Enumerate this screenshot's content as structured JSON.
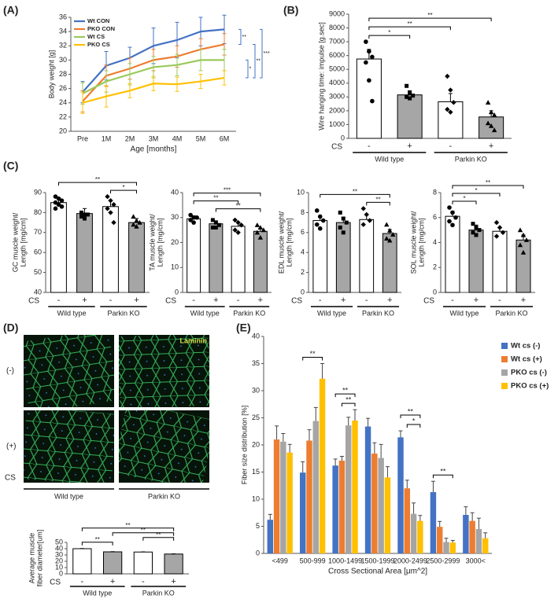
{
  "chart_data": [
    {
      "type": "line",
      "panel": "(A)",
      "ylabel": "Body weight [g]",
      "xlabel": "Age [months]",
      "categories": [
        "Pre",
        "1M",
        "2M",
        "3M",
        "4M",
        "5M",
        "6M"
      ],
      "ylim": [
        20,
        36
      ],
      "yticks": [
        20,
        22,
        24,
        26,
        28,
        30,
        32,
        34,
        36
      ],
      "legend": "upper left",
      "series": [
        {
          "name": "Wt CON",
          "color": "#4472c4",
          "values": [
            25.5,
            29.2,
            30.3,
            32.0,
            32.8,
            34.0,
            34.3
          ],
          "errors": [
            1.5,
            2.0,
            1.5,
            2.5,
            2.5,
            2.0,
            2.0
          ]
        },
        {
          "name": "PKO CON",
          "color": "#ed7d31",
          "values": [
            24.2,
            27.8,
            28.8,
            30.0,
            30.5,
            31.5,
            32.2
          ],
          "errors": [
            1.5,
            1.5,
            1.5,
            1.5,
            1.5,
            1.5,
            1.5
          ]
        },
        {
          "name": "Wt CS",
          "color": "#9bc95a",
          "values": [
            25.3,
            27.0,
            28.0,
            29.0,
            29.3,
            30.0,
            30.0
          ],
          "errors": [
            1.5,
            1.5,
            1.5,
            1.5,
            1.5,
            1.5,
            1.5
          ]
        },
        {
          "name": "PKO CS",
          "color": "#ffc000",
          "values": [
            24.0,
            24.9,
            25.7,
            26.7,
            26.6,
            27.0,
            27.5
          ],
          "errors": [
            1.5,
            1.5,
            1.0,
            1.0,
            1.0,
            1.0,
            1.0
          ]
        }
      ],
      "annotations": [
        {
          "text": "**",
          "pair": [
            0,
            1
          ]
        },
        {
          "text": "*",
          "pair": [
            2,
            3
          ]
        },
        {
          "text": "**",
          "pair": [
            1,
            3
          ]
        },
        {
          "text": "***",
          "pair": [
            0,
            3
          ]
        }
      ]
    },
    {
      "type": "bar",
      "panel": "(B)",
      "ylabel": [
        "Wire hanging time: impulse [g.sec]"
      ],
      "categories": [
        "-",
        "+",
        "-",
        "+"
      ],
      "group_label": "CS",
      "groups": [
        "Wild type",
        "Parkin KO"
      ],
      "values": [
        5750,
        3150,
        2650,
        1550
      ],
      "errors": [
        700,
        300,
        600,
        450
      ],
      "colors": [
        "#ffffff",
        "#a6a6a6",
        "#ffffff",
        "#a6a6a6"
      ],
      "markers": [
        "circle",
        "square",
        "diamond",
        "triangle"
      ],
      "points": [
        [
          7000,
          6300,
          5900,
          5500,
          4200,
          2700
        ],
        [
          3800,
          3300,
          3100,
          3000,
          2900
        ],
        [
          4500,
          3500,
          2600,
          2100,
          1900
        ],
        [
          2600,
          1900,
          1700,
          1100,
          900,
          600
        ]
      ],
      "ylim": [
        0,
        9000
      ],
      "yticks": [
        0,
        1000,
        2000,
        3000,
        4000,
        5000,
        6000,
        7000,
        8000,
        9000
      ],
      "annotations": [
        {
          "text": "*",
          "pair": [
            0,
            1
          ]
        },
        {
          "text": "**",
          "pair": [
            0,
            2
          ]
        },
        {
          "text": "**",
          "pair": [
            0,
            3
          ]
        }
      ]
    },
    {
      "type": "bar",
      "panel": "(C)",
      "ylabel": [
        "GC muscle weight/",
        "Length [mg/cm]"
      ],
      "categories": [
        "-",
        "+",
        "-",
        "+"
      ],
      "group_label": "CS",
      "groups": [
        "Wild type",
        "Parkin KO"
      ],
      "values": [
        85,
        79.5,
        83,
        75
      ],
      "errors": [
        2,
        2.5,
        3,
        2
      ],
      "colors": [
        "#ffffff",
        "#a6a6a6",
        "#ffffff",
        "#a6a6a6"
      ],
      "markers": [
        "circle",
        "square",
        "diamond",
        "triangle"
      ],
      "points": [
        [
          88,
          87,
          86,
          85,
          84,
          83,
          82
        ],
        [
          80,
          79,
          79,
          78,
          77
        ],
        [
          88,
          86,
          84,
          82,
          80,
          75
        ],
        [
          78,
          76,
          75,
          74,
          73
        ]
      ],
      "ylim": [
        40,
        90
      ],
      "yticks": [
        40,
        50,
        60,
        70,
        80,
        90
      ],
      "annotations": [
        {
          "text": "*",
          "pair": [
            2,
            3
          ]
        },
        {
          "text": "**",
          "pair": [
            0,
            3
          ]
        }
      ]
    },
    {
      "type": "bar",
      "ylabel": [
        "TA muscle weight/",
        "Length [mg/cm]"
      ],
      "categories": [
        "-",
        "+",
        "-",
        "+"
      ],
      "group_label": "CS",
      "groups": [
        "Wild type",
        "Parkin KO"
      ],
      "values": [
        29.5,
        27.5,
        26.5,
        24.5
      ],
      "errors": [
        1.2,
        1.2,
        1.5,
        1.2
      ],
      "colors": [
        "#ffffff",
        "#a6a6a6",
        "#ffffff",
        "#a6a6a6"
      ],
      "markers": [
        "circle",
        "square",
        "diamond",
        "triangle"
      ],
      "points": [
        [
          31,
          30,
          30,
          29,
          28
        ],
        [
          29,
          28,
          27,
          26,
          26
        ],
        [
          29,
          28,
          27,
          25,
          24
        ],
        [
          27,
          26,
          25,
          24,
          22
        ]
      ],
      "ylim": [
        0,
        40
      ],
      "yticks": [
        0,
        10,
        20,
        30,
        40
      ],
      "annotations": [
        {
          "text": "**",
          "pair": [
            1,
            3
          ]
        },
        {
          "text": "**",
          "pair": [
            0,
            2
          ]
        },
        {
          "text": "***",
          "pair": [
            0,
            3
          ]
        }
      ]
    },
    {
      "type": "bar",
      "ylabel": [
        "EDL muscle weight/",
        "Length [mg/cm]"
      ],
      "categories": [
        "-",
        "+",
        "-",
        "+"
      ],
      "group_label": "CS",
      "groups": [
        "Wild type",
        "Parkin KO"
      ],
      "values": [
        7.2,
        7.0,
        7.3,
        5.9
      ],
      "errors": [
        0.4,
        0.5,
        0.5,
        0.4
      ],
      "colors": [
        "#ffffff",
        "#a6a6a6",
        "#ffffff",
        "#a6a6a6"
      ],
      "markers": [
        "circle",
        "square",
        "diamond",
        "triangle"
      ],
      "points": [
        [
          8.2,
          7.6,
          7.2,
          6.8,
          6.4
        ],
        [
          8,
          7.4,
          7,
          6.5,
          6
        ],
        [
          8.4,
          7.8,
          7.2,
          6.8
        ],
        [
          6.8,
          6.2,
          5.8,
          5.4,
          5.2
        ]
      ],
      "ylim": [
        0,
        10
      ],
      "yticks": [
        0,
        2,
        4,
        6,
        8,
        10
      ],
      "annotations": [
        {
          "text": "**",
          "pair": [
            2,
            3
          ]
        },
        {
          "text": "**",
          "pair": [
            0,
            3
          ]
        }
      ]
    },
    {
      "type": "bar",
      "ylabel": [
        "SOL muscle weight/",
        "Length [mg/cm]"
      ],
      "categories": [
        "-",
        "+",
        "-",
        "+"
      ],
      "group_label": "CS",
      "groups": [
        "Wild type",
        "Parkin KO"
      ],
      "values": [
        6.1,
        5.0,
        4.9,
        4.2
      ],
      "errors": [
        0.4,
        0.4,
        0.3,
        0.4
      ],
      "colors": [
        "#ffffff",
        "#a6a6a6",
        "#ffffff",
        "#a6a6a6"
      ],
      "markers": [
        "circle",
        "square",
        "diamond",
        "triangle"
      ],
      "points": [
        [
          6.8,
          6.4,
          6.0,
          5.7,
          5.4
        ],
        [
          5.5,
          5.2,
          5.0,
          4.8,
          4.6
        ],
        [
          5.6,
          5.2,
          4.8,
          4.5
        ],
        [
          5.0,
          4.6,
          4.2,
          3.8,
          3.2
        ]
      ],
      "ylim": [
        0,
        8
      ],
      "yticks": [
        0,
        2,
        4,
        6,
        8
      ],
      "annotations": [
        {
          "text": "*",
          "pair": [
            0,
            1
          ]
        },
        {
          "text": "*",
          "pair": [
            0,
            2
          ]
        },
        {
          "text": "**",
          "pair": [
            0,
            3
          ]
        }
      ]
    },
    {
      "type": "bar",
      "panel": "(D)",
      "ylabel": [
        "Average muscle",
        "fiber diameter[um]"
      ],
      "image_rows": [
        "(-)",
        "(+)"
      ],
      "image_axis_label": "CS",
      "image_label": "Laminin",
      "image_groups": [
        "Wild type",
        "Parkin KO"
      ],
      "categories": [
        "-",
        "+",
        "-",
        "+"
      ],
      "group_label": "CS",
      "groups": [
        "Wild type",
        "Parkin KO"
      ],
      "values": [
        40,
        35,
        34.7,
        31.5
      ],
      "errors": [
        0.3,
        0.3,
        0.3,
        0.3
      ],
      "colors": [
        "#ffffff",
        "#a6a6a6",
        "#ffffff",
        "#a6a6a6"
      ],
      "ylim": [
        0,
        50
      ],
      "yticks": [
        0,
        10,
        20,
        30,
        40,
        50
      ],
      "annotations": [
        {
          "text": "**",
          "pair": [
            0,
            1
          ]
        },
        {
          "text": "**",
          "pair": [
            2,
            3
          ]
        },
        {
          "text": "**",
          "pair": [
            1,
            3
          ]
        },
        {
          "text": "**",
          "pair": [
            0,
            3
          ]
        }
      ]
    },
    {
      "type": "bar",
      "panel": "(E)",
      "ylabel": "Fiber size distribution [%]",
      "xlabel": "Cross Sectional Area [μm^2]",
      "categories": [
        "<499",
        "500-999",
        "1000-1499",
        "1500-1999",
        "2000-2499",
        "2500-2999",
        "3000<"
      ],
      "ylim": [
        0,
        40
      ],
      "yticks": [
        0,
        5,
        10,
        15,
        20,
        25,
        30,
        35,
        40
      ],
      "legend": "right",
      "series": [
        {
          "name": "Wt cs (-)",
          "color": "#4472c4",
          "values": [
            6.2,
            14.9,
            16.2,
            23.4,
            21.4,
            11.3,
            7.1
          ],
          "errors": [
            1.0,
            2.0,
            1.2,
            1.5,
            1.2,
            2.0,
            1.5
          ]
        },
        {
          "name": "Wt cs (+)",
          "color": "#ed7d31",
          "values": [
            21.0,
            20.8,
            17.1,
            18.4,
            12.0,
            4.9,
            6.0
          ],
          "errors": [
            2.5,
            2.0,
            0.8,
            2.0,
            1.5,
            1.0,
            1.5
          ]
        },
        {
          "name": "PKO cs (-)",
          "color": "#a5a5a5",
          "values": [
            20.6,
            24.4,
            23.6,
            17.6,
            7.3,
            2.1,
            4.5
          ],
          "errors": [
            1.5,
            2.5,
            1.5,
            2.5,
            2.0,
            0.7,
            2.0
          ]
        },
        {
          "name": "PKO cs (+)",
          "color": "#ffc000",
          "values": [
            18.6,
            32.2,
            24.5,
            14.0,
            6.0,
            2.0,
            2.8
          ],
          "errors": [
            1.5,
            2.8,
            2.0,
            2.0,
            1.0,
            0.4,
            1.0
          ]
        }
      ],
      "annotations": [
        {
          "text": "**",
          "category": 1,
          "pair": [
            0,
            3
          ]
        },
        {
          "text": "**",
          "category": 2,
          "pair": [
            1,
            3
          ]
        },
        {
          "text": "**",
          "category": 2,
          "pair": [
            0,
            3
          ]
        },
        {
          "text": "*",
          "category": 4,
          "pair": [
            1,
            3
          ]
        },
        {
          "text": "**",
          "category": 4,
          "pair": [
            0,
            3
          ]
        },
        {
          "text": "**",
          "category": 5,
          "pair": [
            0,
            3
          ]
        }
      ]
    }
  ]
}
